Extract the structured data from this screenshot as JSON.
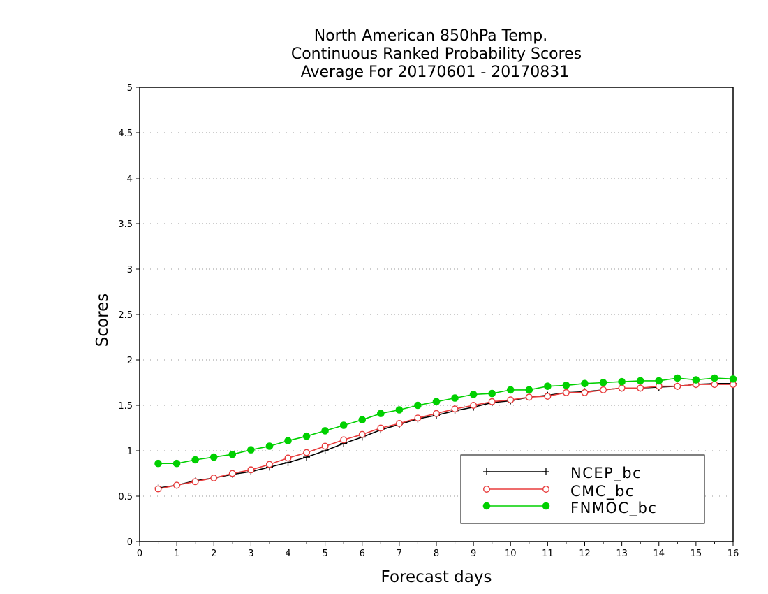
{
  "chart_data": {
    "type": "line",
    "title": [
      "North American 850hPa Temp.",
      "Continuous Ranked Probability Scores",
      "Average For 20170601 - 20170831"
    ],
    "xlabel": "Forecast days",
    "ylabel": "Scores",
    "xlim": [
      0,
      16
    ],
    "ylim": [
      0,
      5
    ],
    "xticks": [
      0,
      1,
      2,
      3,
      4,
      5,
      6,
      7,
      8,
      9,
      10,
      11,
      12,
      13,
      14,
      15,
      16
    ],
    "yticks": [
      0,
      0.5,
      1,
      1.5,
      2,
      2.5,
      3,
      3.5,
      4,
      4.5,
      5
    ],
    "xtick_labels": [
      "0",
      "1",
      "2",
      "3",
      "4",
      "5",
      "6",
      "7",
      "8",
      "9",
      "10",
      "11",
      "12",
      "13",
      "14",
      "15",
      "16"
    ],
    "ytick_labels": [
      "0",
      "0.5",
      "1",
      "1.5",
      "2",
      "2.5",
      "3",
      "3.5",
      "4",
      "4.5",
      "5"
    ],
    "grid": "horizontal dotted",
    "legend_position": "bottom-right",
    "x": [
      0.5,
      1,
      1.5,
      2,
      2.5,
      3,
      3.5,
      4,
      4.5,
      5,
      5.5,
      6,
      6.5,
      7,
      7.5,
      8,
      8.5,
      9,
      9.5,
      10,
      10.5,
      11,
      11.5,
      12,
      12.5,
      13,
      13.5,
      14,
      14.5,
      15,
      15.5,
      16
    ],
    "series": [
      {
        "name": "NCEP_bc",
        "color": "#000000",
        "marker": "plus",
        "values": [
          0.59,
          0.62,
          0.67,
          0.7,
          0.74,
          0.77,
          0.82,
          0.87,
          0.93,
          1.0,
          1.08,
          1.15,
          1.23,
          1.29,
          1.35,
          1.39,
          1.44,
          1.48,
          1.53,
          1.55,
          1.59,
          1.61,
          1.64,
          1.65,
          1.67,
          1.69,
          1.69,
          1.7,
          1.71,
          1.73,
          1.74,
          1.74
        ]
      },
      {
        "name": "CMC_bc",
        "color": "#e83c3c",
        "marker": "open-circle",
        "values": [
          0.58,
          0.62,
          0.66,
          0.7,
          0.75,
          0.79,
          0.85,
          0.92,
          0.98,
          1.05,
          1.12,
          1.18,
          1.25,
          1.3,
          1.36,
          1.41,
          1.46,
          1.5,
          1.54,
          1.56,
          1.59,
          1.6,
          1.64,
          1.64,
          1.67,
          1.69,
          1.69,
          1.71,
          1.71,
          1.73,
          1.73,
          1.73
        ]
      },
      {
        "name": "FNMOC_bc",
        "color": "#00d000",
        "marker": "filled-circle",
        "values": [
          0.86,
          0.86,
          0.9,
          0.93,
          0.96,
          1.01,
          1.05,
          1.11,
          1.16,
          1.22,
          1.28,
          1.34,
          1.41,
          1.45,
          1.5,
          1.54,
          1.58,
          1.62,
          1.63,
          1.67,
          1.67,
          1.71,
          1.72,
          1.74,
          1.75,
          1.76,
          1.77,
          1.77,
          1.8,
          1.78,
          1.8,
          1.79
        ]
      }
    ]
  }
}
